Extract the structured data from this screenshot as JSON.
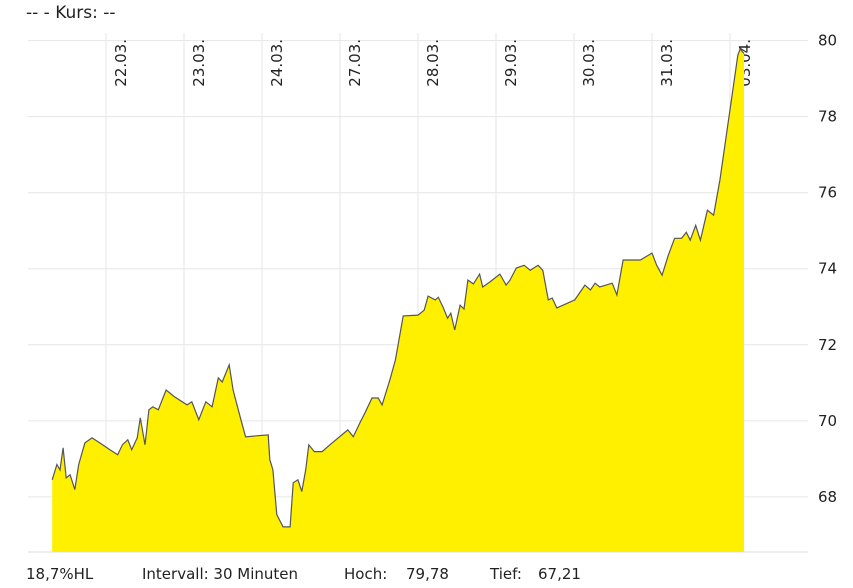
{
  "chart_data": {
    "type": "area",
    "title": "--  - Kurs: --",
    "x": [
      0.31,
      0.37,
      0.41,
      0.45,
      0.49,
      0.54,
      0.6,
      0.65,
      0.73,
      0.82,
      0.92,
      1.05,
      1.15,
      1.21,
      1.28,
      1.33,
      1.4,
      1.44,
      1.5,
      1.55,
      1.6,
      1.67,
      1.77,
      1.88,
      2.04,
      2.1,
      2.19,
      2.28,
      2.36,
      2.44,
      2.49,
      2.58,
      2.63,
      2.73,
      2.79,
      2.95,
      3.08,
      3.1,
      3.14,
      3.19,
      3.27,
      3.36,
      3.4,
      3.46,
      3.51,
      3.56,
      3.6,
      3.67,
      3.77,
      3.87,
      4.1,
      4.17,
      4.26,
      4.32,
      4.41,
      4.49,
      4.54,
      4.64,
      4.71,
      4.81,
      5.0,
      5.08,
      5.13,
      5.22,
      5.26,
      5.32,
      5.38,
      5.42,
      5.47,
      5.54,
      5.59,
      5.64,
      5.71,
      5.79,
      5.83,
      5.92,
      6.05,
      6.13,
      6.18,
      6.26,
      6.36,
      6.44,
      6.54,
      6.6,
      6.67,
      6.72,
      6.78,
      7.01,
      7.14,
      7.21,
      7.27,
      7.33,
      7.49,
      7.55,
      7.63,
      7.85,
      8.0,
      8.06,
      8.13,
      8.21,
      8.29,
      8.38,
      8.44,
      8.49,
      8.56,
      8.62,
      8.71,
      8.79,
      8.87,
      9.1,
      9.13,
      9.18
    ],
    "values": [
      68.45,
      68.85,
      68.71,
      69.29,
      68.5,
      68.58,
      68.19,
      68.85,
      69.42,
      69.55,
      69.42,
      69.24,
      69.11,
      69.37,
      69.5,
      69.24,
      69.55,
      70.08,
      69.37,
      70.29,
      70.37,
      70.29,
      70.81,
      70.63,
      70.42,
      70.5,
      70.03,
      70.5,
      70.37,
      71.13,
      71.02,
      71.47,
      70.81,
      70.03,
      69.58,
      69.61,
      69.63,
      68.98,
      68.71,
      67.53,
      67.21,
      67.21,
      68.37,
      68.45,
      68.14,
      68.71,
      69.37,
      69.19,
      69.19,
      69.37,
      69.76,
      69.58,
      69.97,
      70.21,
      70.6,
      70.6,
      70.42,
      71.08,
      71.6,
      72.76,
      72.78,
      72.91,
      73.28,
      73.18,
      73.25,
      72.99,
      72.7,
      72.83,
      72.39,
      73.04,
      72.94,
      73.7,
      73.6,
      73.86,
      73.52,
      73.65,
      73.86,
      73.57,
      73.7,
      74.02,
      74.09,
      73.96,
      74.09,
      73.96,
      73.18,
      73.23,
      72.97,
      73.18,
      73.57,
      73.44,
      73.62,
      73.52,
      73.62,
      73.31,
      74.23,
      74.23,
      74.41,
      74.09,
      73.83,
      74.36,
      74.8,
      74.8,
      74.96,
      74.75,
      75.14,
      74.75,
      75.54,
      75.41,
      76.33,
      79.61,
      79.78,
      79.66
    ],
    "color": "#fff000",
    "line_color": "#555555",
    "xlim": [
      0,
      10
    ],
    "xticks": [
      {
        "value": 1,
        "label": "22.03."
      },
      {
        "value": 2,
        "label": "23.03."
      },
      {
        "value": 3,
        "label": "24.03."
      },
      {
        "value": 4,
        "label": "27.03."
      },
      {
        "value": 5,
        "label": "28.03."
      },
      {
        "value": 6,
        "label": "29.03."
      },
      {
        "value": 7,
        "label": "30.03."
      },
      {
        "value": 8,
        "label": "31.03."
      },
      {
        "value": 9,
        "label": "03.04."
      }
    ],
    "ylim": [
      66.55,
      80.2
    ],
    "yticks": [
      68,
      70,
      72,
      74,
      76,
      78,
      80
    ],
    "grid": true,
    "footer": [
      "18,7%HL",
      "Intervall: 30 Minuten",
      "Hoch:",
      "79,78",
      "Tief:",
      "67,21"
    ]
  }
}
